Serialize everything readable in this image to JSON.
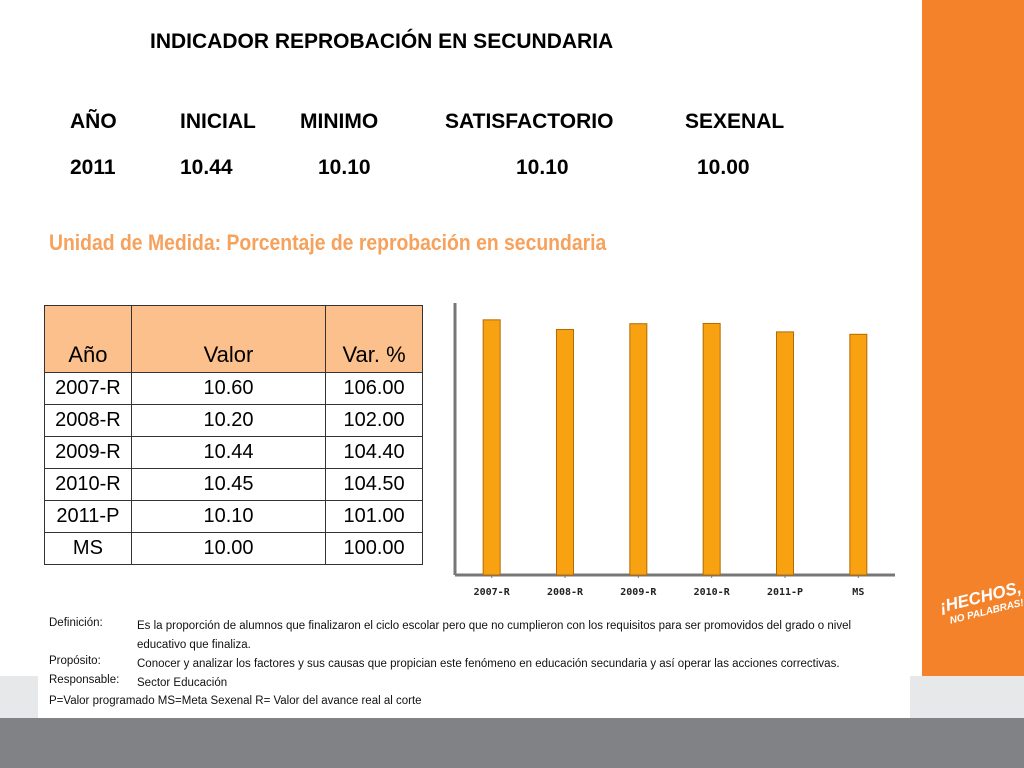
{
  "title": "INDICADOR REPROBACIÓN EN SECUNDARIA",
  "indicator": {
    "headers": [
      "AÑO",
      "INICIAL",
      "MINIMO",
      "SATISFACTORIO",
      "SEXENAL"
    ],
    "values": [
      "2011",
      "10.44",
      "10.10",
      "10.10",
      "10.00"
    ]
  },
  "subtitle": "Unidad de Medida:  Porcentaje de reprobación en secundaria",
  "table": {
    "headers": [
      "Año",
      "Valor",
      "Var. %"
    ],
    "rows": [
      [
        "2007-R",
        "10.60",
        "106.00"
      ],
      [
        "2008-R",
        "10.20",
        "102.00"
      ],
      [
        "2009-R",
        "10.44",
        "104.40"
      ],
      [
        "2010-R",
        "10.45",
        "104.50"
      ],
      [
        "2011-P",
        "10.10",
        "101.00"
      ],
      [
        "MS",
        "10.00",
        "100.00"
      ]
    ]
  },
  "chart_data": {
    "type": "bar",
    "categories": [
      "2007-R",
      "2008-R",
      "2009-R",
      "2010-R",
      "2011-P",
      "MS"
    ],
    "values": [
      10.6,
      10.2,
      10.44,
      10.45,
      10.1,
      10.0
    ],
    "title": "",
    "xlabel": "",
    "ylabel": "",
    "ylim": [
      0,
      11.3
    ],
    "grid": false,
    "bar_color": "#f8a212",
    "bar_edge_color": "#b36a00"
  },
  "definition": {
    "rows": [
      {
        "label": "Definición:",
        "text": "Es la proporción de alumnos que finalizaron el ciclo escolar pero que no cumplieron con los requisitos para ser promovidos del grado o nivel educativo que finaliza."
      },
      {
        "label": "Propósito:",
        "text": "Conocer y analizar los factores y sus causas que propician este fenómeno en educación secundaria y así operar las acciones correctivas."
      },
      {
        "label": "Responsable:",
        "text": "Sector Educación"
      }
    ],
    "legend": "P=Valor programado   MS=Meta Sexenal   R= Valor del avance real al corte"
  },
  "slogan": {
    "line1": "¡HECHOS,",
    "line2": "NO PALABRAS!"
  },
  "colors": {
    "accent_orange": "#f4822a",
    "table_header": "#fcc08d",
    "subtitle": "#f6a15c",
    "footer_gray": "#808285"
  }
}
